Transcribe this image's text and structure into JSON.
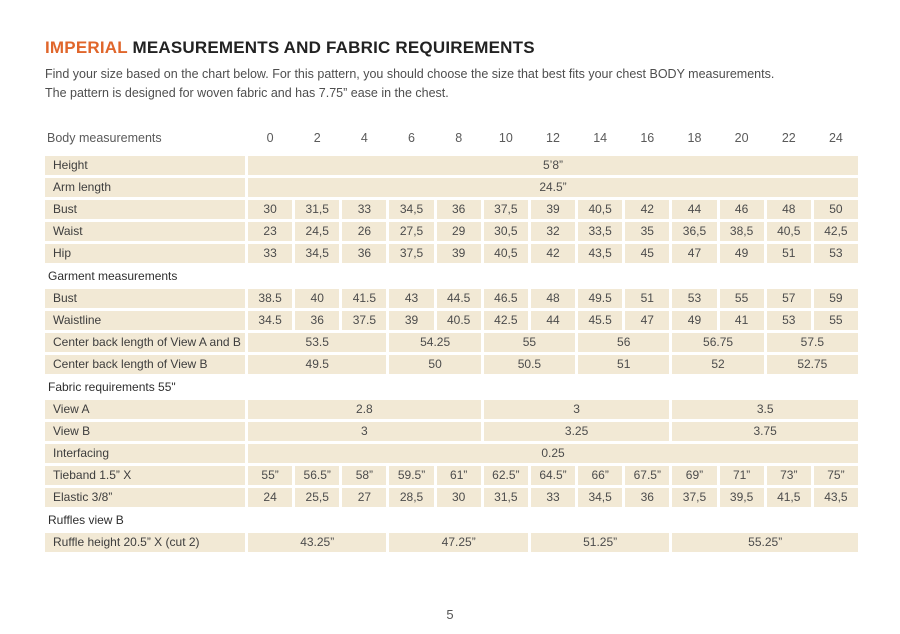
{
  "header": {
    "title_highlight": "IMPERIAL",
    "title_rest": " MEASUREMENTS AND FABRIC REQUIREMENTS",
    "intro_line1": "Find your size based on the chart below. For this pattern, you should choose the size that best fits your chest BODY measurements.",
    "intro_line2": "The pattern is designed for woven fabric and has 7.75” ease in the chest."
  },
  "colors": {
    "accent": "#e0662b",
    "cell_bg": "#f2e9d5",
    "label_text": "#3d3d3d",
    "value_text": "#4c4c4c"
  },
  "table": {
    "header": {
      "label": "Body measurements",
      "sizes": [
        "0",
        "2",
        "4",
        "6",
        "8",
        "10",
        "12",
        "14",
        "16",
        "18",
        "20",
        "22",
        "24"
      ]
    },
    "rows": [
      {
        "type": "data",
        "label": "Height",
        "cells": [
          {
            "text": "5’8”",
            "span": 13
          }
        ]
      },
      {
        "type": "data",
        "label": "Arm length",
        "cells": [
          {
            "text": "24.5”",
            "span": 13
          }
        ]
      },
      {
        "type": "data",
        "label": "Bust",
        "cells": [
          {
            "text": "30"
          },
          {
            "text": "31,5"
          },
          {
            "text": "33"
          },
          {
            "text": "34,5"
          },
          {
            "text": "36"
          },
          {
            "text": "37,5"
          },
          {
            "text": "39"
          },
          {
            "text": "40,5"
          },
          {
            "text": "42"
          },
          {
            "text": "44"
          },
          {
            "text": "46"
          },
          {
            "text": "48"
          },
          {
            "text": "50"
          }
        ]
      },
      {
        "type": "data",
        "label": "Waist",
        "cells": [
          {
            "text": "23"
          },
          {
            "text": "24,5"
          },
          {
            "text": "26"
          },
          {
            "text": "27,5"
          },
          {
            "text": "29"
          },
          {
            "text": "30,5"
          },
          {
            "text": "32"
          },
          {
            "text": "33,5"
          },
          {
            "text": "35"
          },
          {
            "text": "36,5"
          },
          {
            "text": "38,5"
          },
          {
            "text": "40,5"
          },
          {
            "text": "42,5"
          }
        ]
      },
      {
        "type": "data",
        "label": "Hip",
        "cells": [
          {
            "text": "33"
          },
          {
            "text": "34,5"
          },
          {
            "text": "36"
          },
          {
            "text": "37,5"
          },
          {
            "text": "39"
          },
          {
            "text": "40,5"
          },
          {
            "text": "42"
          },
          {
            "text": "43,5"
          },
          {
            "text": "45"
          },
          {
            "text": "47"
          },
          {
            "text": "49"
          },
          {
            "text": "51"
          },
          {
            "text": "53"
          }
        ]
      },
      {
        "type": "section",
        "label": "Garment measurements"
      },
      {
        "type": "data",
        "label": "Bust",
        "cells": [
          {
            "text": "38.5"
          },
          {
            "text": "40"
          },
          {
            "text": "41.5"
          },
          {
            "text": "43"
          },
          {
            "text": "44.5"
          },
          {
            "text": "46.5"
          },
          {
            "text": "48"
          },
          {
            "text": "49.5"
          },
          {
            "text": "51"
          },
          {
            "text": "53"
          },
          {
            "text": "55"
          },
          {
            "text": "57"
          },
          {
            "text": "59"
          }
        ]
      },
      {
        "type": "data",
        "label": "Waistline",
        "cells": [
          {
            "text": "34.5"
          },
          {
            "text": "36"
          },
          {
            "text": "37.5"
          },
          {
            "text": "39"
          },
          {
            "text": "40.5"
          },
          {
            "text": "42.5"
          },
          {
            "text": "44"
          },
          {
            "text": "45.5"
          },
          {
            "text": "47"
          },
          {
            "text": "49"
          },
          {
            "text": "41"
          },
          {
            "text": "53"
          },
          {
            "text": "55"
          }
        ]
      },
      {
        "type": "data",
        "label": "Center back length of View A and B",
        "cells": [
          {
            "text": "53.5",
            "span": 3
          },
          {
            "text": "54.25",
            "span": 2
          },
          {
            "text": "55",
            "span": 2
          },
          {
            "text": "56",
            "span": 2
          },
          {
            "text": "56.75",
            "span": 2
          },
          {
            "text": "57.5",
            "span": 2
          }
        ]
      },
      {
        "type": "data",
        "label": "Center back length of View B",
        "cells": [
          {
            "text": "49.5",
            "span": 3
          },
          {
            "text": "50",
            "span": 2
          },
          {
            "text": "50.5",
            "span": 2
          },
          {
            "text": "51",
            "span": 2
          },
          {
            "text": "52",
            "span": 2
          },
          {
            "text": "52.75",
            "span": 2
          }
        ]
      },
      {
        "type": "section",
        "label": "Fabric requirements 55\""
      },
      {
        "type": "data",
        "label": "View A",
        "cells": [
          {
            "text": "2.8",
            "span": 5
          },
          {
            "text": "3",
            "span": 4
          },
          {
            "text": "3.5",
            "span": 4
          }
        ]
      },
      {
        "type": "data",
        "label": "View B",
        "cells": [
          {
            "text": "3",
            "span": 5
          },
          {
            "text": "3.25",
            "span": 4
          },
          {
            "text": "3.75",
            "span": 4
          }
        ]
      },
      {
        "type": "data",
        "label": "Interfacing",
        "cells": [
          {
            "text": "0.25",
            "span": 13
          }
        ]
      },
      {
        "type": "data",
        "label": "Tieband 1.5” X",
        "cells": [
          {
            "text": "55”"
          },
          {
            "text": "56.5”"
          },
          {
            "text": "58”"
          },
          {
            "text": "59.5”"
          },
          {
            "text": "61”"
          },
          {
            "text": "62.5”"
          },
          {
            "text": "64.5”"
          },
          {
            "text": "66”"
          },
          {
            "text": "67.5”"
          },
          {
            "text": "69”"
          },
          {
            "text": "71”"
          },
          {
            "text": "73”"
          },
          {
            "text": "75”"
          }
        ]
      },
      {
        "type": "data",
        "label": "Elastic 3/8”",
        "cells": [
          {
            "text": "24"
          },
          {
            "text": "25,5"
          },
          {
            "text": "27"
          },
          {
            "text": "28,5"
          },
          {
            "text": "30"
          },
          {
            "text": "31,5"
          },
          {
            "text": "33"
          },
          {
            "text": "34,5"
          },
          {
            "text": "36"
          },
          {
            "text": "37,5"
          },
          {
            "text": "39,5"
          },
          {
            "text": "41,5"
          },
          {
            "text": "43,5"
          }
        ]
      },
      {
        "type": "section",
        "label": "Ruffles view B"
      },
      {
        "type": "data",
        "label": "Ruffle height 20.5” X (cut 2)",
        "cells": [
          {
            "text": "43.25”",
            "span": 3
          },
          {
            "text": "47.25”",
            "span": 3
          },
          {
            "text": "51.25”",
            "span": 3
          },
          {
            "text": "55.25”",
            "span": 4
          }
        ]
      }
    ]
  },
  "footer": {
    "page_number": "5"
  }
}
